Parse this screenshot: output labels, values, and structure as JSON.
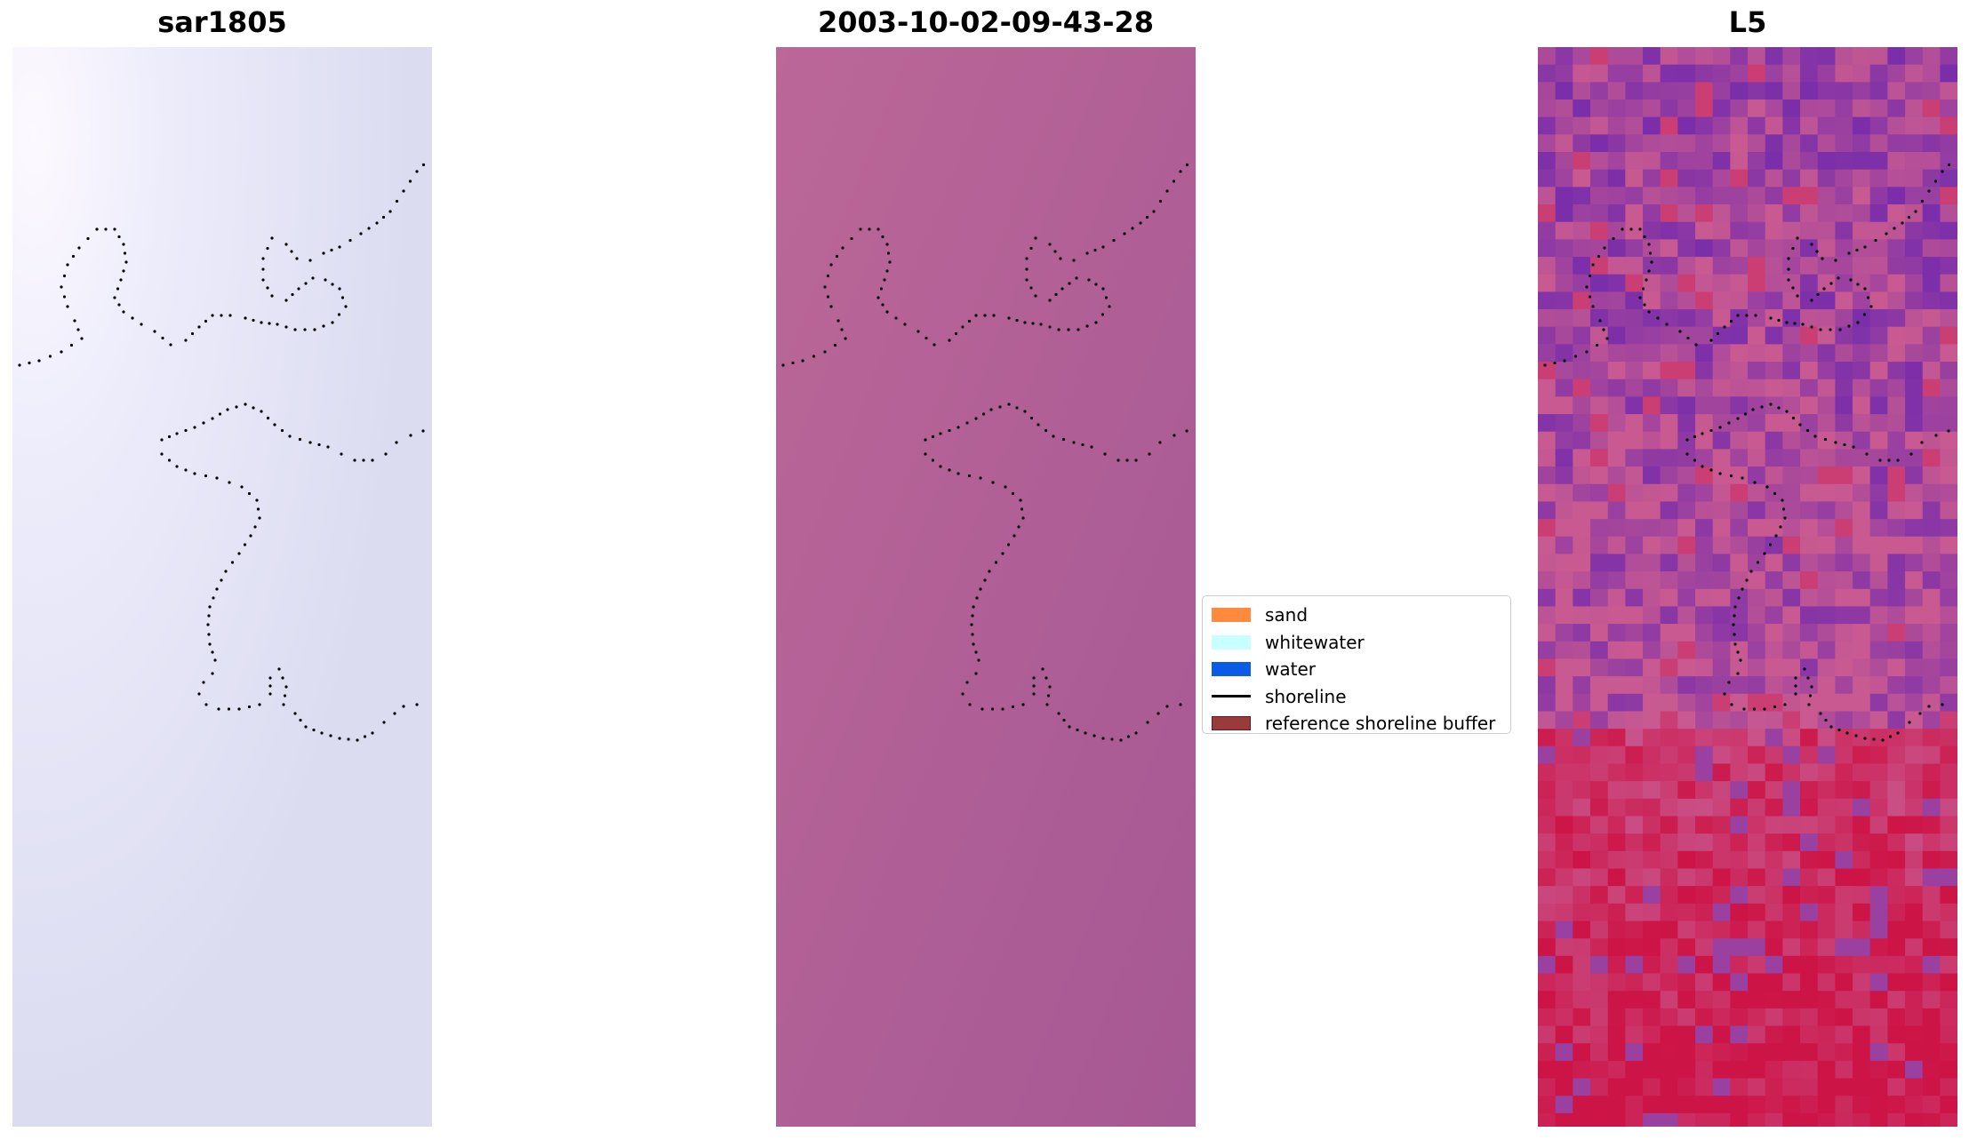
{
  "panels": [
    {
      "title": "sar1805"
    },
    {
      "title": "2003-10-02-09-43-28"
    },
    {
      "title": "L5"
    }
  ],
  "legend": {
    "items": [
      {
        "label": "sand",
        "type": "patch",
        "color": "#ff8a3d"
      },
      {
        "label": "whitewater",
        "type": "patch",
        "color": "#c8ffff"
      },
      {
        "label": "water",
        "type": "patch",
        "color": "#0a5be6"
      },
      {
        "label": "shoreline",
        "type": "line",
        "color": "#000000"
      },
      {
        "label": "reference shoreline buffer",
        "type": "patch",
        "color": "#9b3a3a"
      }
    ]
  },
  "colors": {
    "sar_base": "#e3e3f7",
    "rgb_base": "#b0609a",
    "l5_base": "#c25a96",
    "shoreline": "#000000"
  }
}
